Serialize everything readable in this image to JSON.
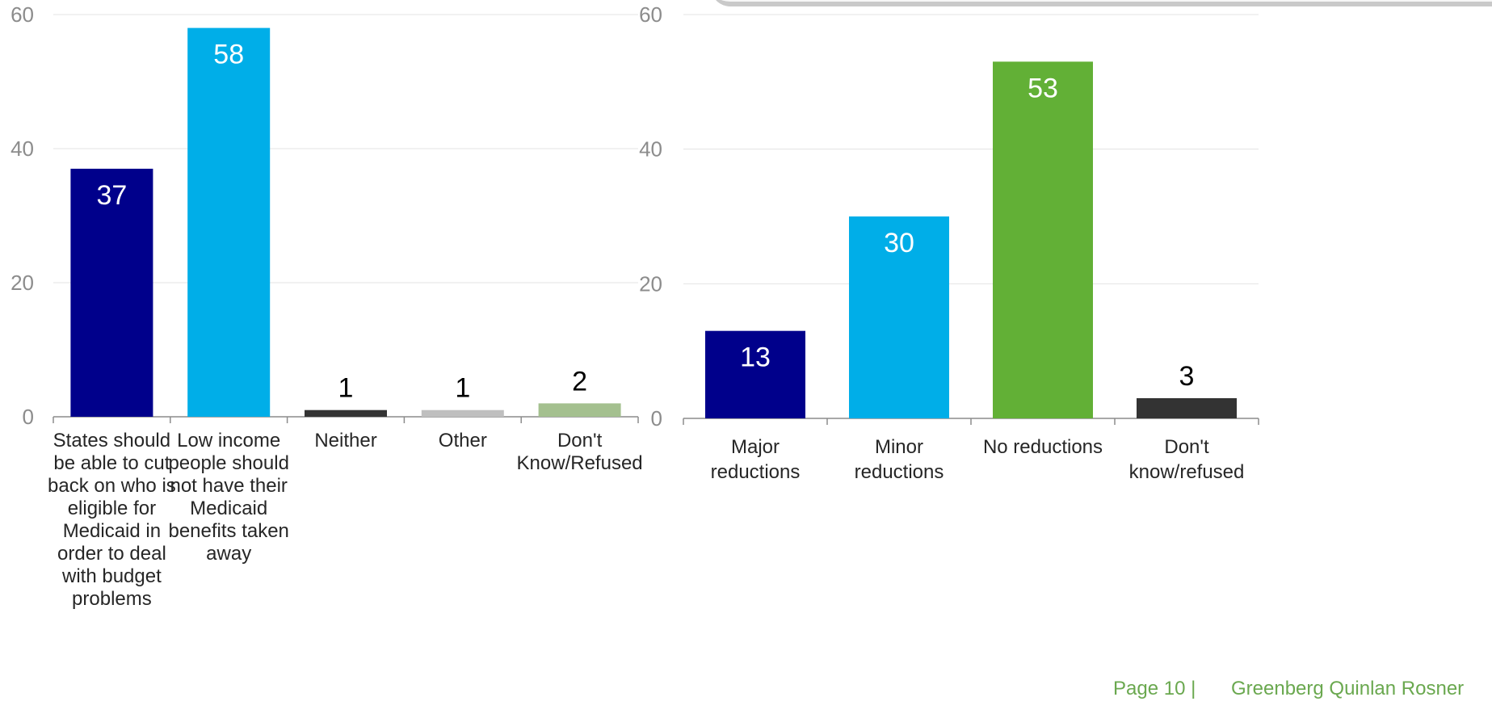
{
  "chart_data": [
    {
      "type": "bar",
      "title": "",
      "xlabel": "",
      "ylabel": "",
      "ylim": [
        0,
        60
      ],
      "yticks": [
        0,
        20,
        40,
        60
      ],
      "grid": true,
      "categories": [
        [
          "States should",
          "be able to cut",
          "back on who is",
          "eligible for",
          "Medicaid in",
          "order to deal",
          "with budget",
          "problems"
        ],
        [
          "Low income",
          "people should",
          "not have their",
          "Medicaid",
          "benefits taken",
          "away"
        ],
        [
          "Neither"
        ],
        [
          "Other"
        ],
        [
          "Don't",
          "Know/Refused"
        ]
      ],
      "values": [
        37,
        58,
        1,
        1,
        2
      ],
      "colors": [
        "#00008b",
        "#00aee8",
        "#333333",
        "#bfbfbf",
        "#a4c08f"
      ],
      "label_inside": [
        true,
        true,
        false,
        false,
        false
      ],
      "label_colors": [
        "#ffffff",
        "#ffffff",
        "#000000",
        "#000000",
        "#000000"
      ]
    },
    {
      "type": "bar",
      "title": "",
      "xlabel": "",
      "ylabel": "",
      "ylim": [
        0,
        60
      ],
      "yticks": [
        0,
        20,
        40,
        60
      ],
      "grid": true,
      "categories": [
        [
          "Major",
          "reductions"
        ],
        [
          "Minor",
          "reductions"
        ],
        [
          "No reductions"
        ],
        [
          "Don't",
          "know/refused"
        ]
      ],
      "values": [
        13,
        30,
        53,
        3
      ],
      "colors": [
        "#00008b",
        "#00aee8",
        "#62b036",
        "#333333"
      ],
      "label_inside": [
        true,
        true,
        true,
        false
      ],
      "label_colors": [
        "#ffffff",
        "#ffffff",
        "#ffffff",
        "#000000"
      ]
    }
  ],
  "footer": {
    "page": "Page 10 |",
    "org": "Greenberg Quinlan Rosner"
  }
}
